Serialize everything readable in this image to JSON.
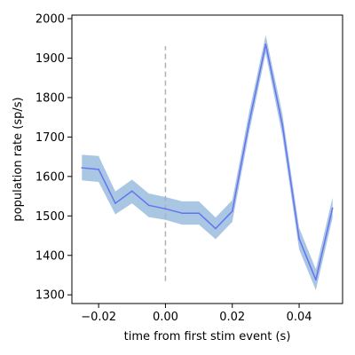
{
  "chart_data": {
    "type": "line",
    "xlabel": "time from first stim event (s)",
    "ylabel": "population rate (sp/s)",
    "xlim": [
      -0.028,
      0.053
    ],
    "ylim": [
      1278,
      2009
    ],
    "xticks": [
      -0.02,
      0.0,
      0.02,
      0.04
    ],
    "xtick_labels": [
      "−0.02",
      "0.00",
      "0.02",
      "0.04"
    ],
    "yticks": [
      1300,
      1400,
      1500,
      1600,
      1700,
      1800,
      1900,
      2000
    ],
    "ytick_labels": [
      "1300",
      "1400",
      "1500",
      "1600",
      "1700",
      "1800",
      "1900",
      "2000"
    ],
    "grid": false,
    "series": [
      {
        "x": [
          -0.025,
          -0.02,
          -0.015,
          -0.01,
          -0.005,
          0.0,
          0.005,
          0.01,
          0.015,
          0.02,
          0.025,
          0.03,
          0.035,
          0.04,
          0.045,
          0.05
        ],
        "y": [
          1622,
          1618,
          1532,
          1563,
          1527,
          1518,
          1507,
          1507,
          1468,
          1512,
          1735,
          1935,
          1730,
          1442,
          1338,
          1520
        ],
        "lower": [
          1590,
          1586,
          1504,
          1532,
          1497,
          1490,
          1478,
          1478,
          1441,
          1485,
          1710,
          1912,
          1702,
          1415,
          1312,
          1495
        ],
        "upper": [
          1655,
          1652,
          1562,
          1592,
          1557,
          1548,
          1537,
          1537,
          1496,
          1540,
          1762,
          1958,
          1758,
          1470,
          1365,
          1547
        ],
        "color": "#6473f0",
        "band_color": "#a9c6e3"
      }
    ],
    "annotations": [
      {
        "type": "vline",
        "x": 0.0,
        "y_range": [
          1335,
          1930
        ],
        "color": "#b0b0b0",
        "style": "dashed"
      }
    ]
  }
}
